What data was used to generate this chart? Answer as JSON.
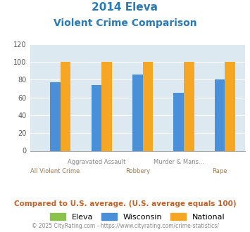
{
  "title_line1": "2014 Eleva",
  "title_line2": "Violent Crime Comparison",
  "categories": [
    "All Violent Crime",
    "Aggravated Assault",
    "Robbery",
    "Murder & Mans...",
    "Rape"
  ],
  "eleva": [
    0,
    0,
    0,
    0,
    0
  ],
  "wisconsin": [
    77,
    74,
    86,
    65,
    80
  ],
  "national": [
    100,
    100,
    100,
    100,
    100
  ],
  "eleva_color": "#8bc34a",
  "wisconsin_color": "#4a90d9",
  "national_color": "#f5a623",
  "ylim": [
    0,
    120
  ],
  "yticks": [
    0,
    20,
    40,
    60,
    80,
    100,
    120
  ],
  "xlabel_row1_indices": [
    1,
    3
  ],
  "xlabel_row1_labels": [
    "Aggravated Assault",
    "Murder & Mans..."
  ],
  "xlabel_row2_indices": [
    0,
    2,
    4
  ],
  "xlabel_row2_labels": [
    "All Violent Crime",
    "Robbery",
    "Rape"
  ],
  "legend_labels": [
    "Eleva",
    "Wisconsin",
    "National"
  ],
  "footer_text": "Compared to U.S. average. (U.S. average equals 100)",
  "copyright_text": "© 2025 CityRating.com - https://www.cityrating.com/crime-statistics/",
  "title_color": "#2a7ab5",
  "footer_color": "#c0622a",
  "copyright_color": "#888888",
  "bg_color": "#dde9f0",
  "bar_width": 0.25
}
